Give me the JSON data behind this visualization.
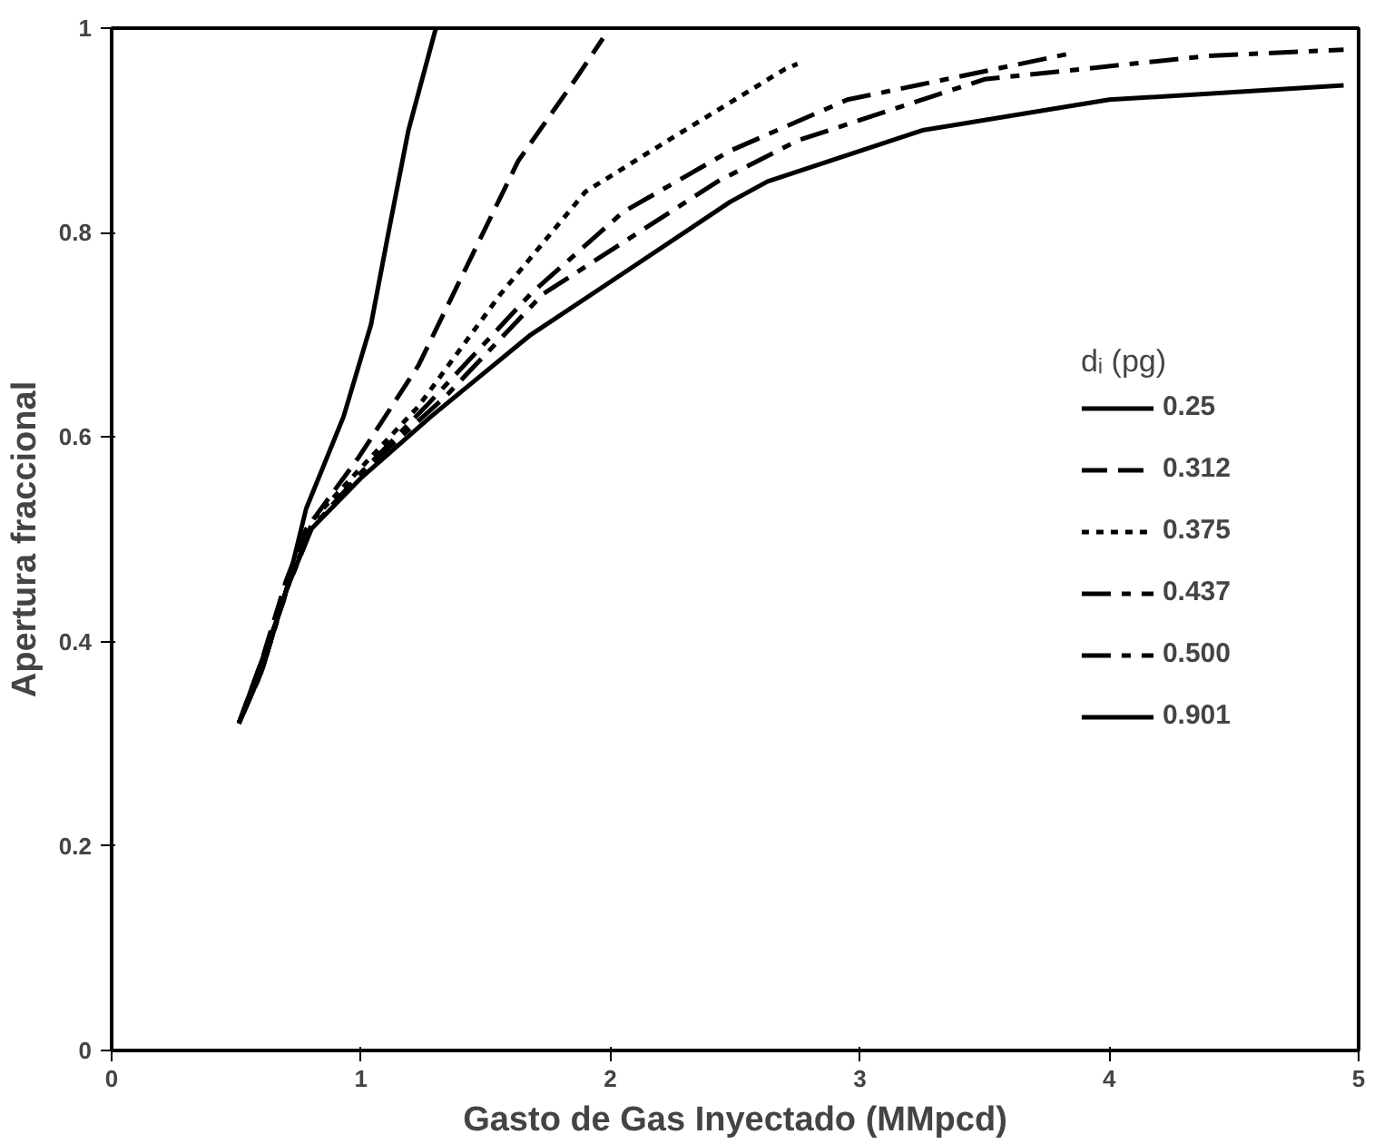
{
  "chart_data": {
    "type": "line",
    "xlabel": "Gasto de Gas Inyectado (MMpcd)",
    "ylabel": "Apertura fraccional",
    "legend_title": "dᵢ (pg)",
    "legend": "right",
    "grid": false,
    "marker": "none",
    "xlim": [
      0,
      5
    ],
    "xticks": [
      0,
      1,
      2,
      3,
      4,
      5
    ],
    "ylim": [
      0,
      1
    ],
    "yticks": [
      0,
      0.2,
      0.4,
      0.6,
      0.8,
      1
    ],
    "series": [
      {
        "name": "0.25",
        "color": "#000000",
        "line_style": "solid",
        "x": [
          0.51,
          0.6,
          0.69,
          0.78,
          0.93,
          1.04,
          1.11,
          1.19,
          1.3
        ],
        "values": [
          0.32,
          0.38,
          0.44,
          0.53,
          0.62,
          0.71,
          0.8,
          0.9,
          1.0
        ]
      },
      {
        "name": "0.312",
        "color": "#000000",
        "line_style": "dashed",
        "x": [
          0.51,
          0.6,
          0.7,
          0.78,
          0.99,
          1.23,
          1.43,
          1.63,
          1.86,
          1.97
        ],
        "values": [
          0.32,
          0.38,
          0.46,
          0.51,
          0.58,
          0.67,
          0.77,
          0.87,
          0.95,
          0.99
        ]
      },
      {
        "name": "0.375",
        "color": "#000000",
        "line_style": "dotted",
        "x": [
          0.51,
          0.6,
          0.7,
          0.81,
          1.0,
          1.23,
          1.56,
          1.9,
          2.23,
          2.7,
          2.75
        ],
        "values": [
          0.32,
          0.37,
          0.45,
          0.52,
          0.57,
          0.63,
          0.74,
          0.84,
          0.89,
          0.96,
          0.965
        ]
      },
      {
        "name": "0.437",
        "color": "#000000",
        "line_style": "dashdot",
        "x": [
          0.51,
          0.6,
          0.7,
          0.8,
          1.0,
          1.26,
          1.68,
          2.05,
          2.48,
          2.95,
          3.84
        ],
        "values": [
          0.32,
          0.37,
          0.45,
          0.51,
          0.565,
          0.63,
          0.74,
          0.82,
          0.88,
          0.93,
          0.975
        ]
      },
      {
        "name": "0.500",
        "color": "#000000",
        "line_style": "dashdot",
        "x": [
          0.51,
          0.6,
          0.7,
          0.8,
          1.0,
          1.34,
          1.73,
          2.43,
          2.75,
          3.5,
          4.4,
          4.94
        ],
        "values": [
          0.32,
          0.37,
          0.45,
          0.51,
          0.565,
          0.64,
          0.74,
          0.85,
          0.89,
          0.95,
          0.973,
          0.979
        ]
      },
      {
        "name": "0.901",
        "color": "#000000",
        "line_style": "solid",
        "x": [
          0.51,
          0.6,
          0.7,
          0.8,
          1.0,
          1.28,
          1.68,
          2.05,
          2.48,
          2.63,
          3.25,
          4.0,
          4.94
        ],
        "values": [
          0.32,
          0.37,
          0.45,
          0.51,
          0.56,
          0.62,
          0.7,
          0.76,
          0.83,
          0.85,
          0.9,
          0.93,
          0.944
        ]
      }
    ]
  }
}
